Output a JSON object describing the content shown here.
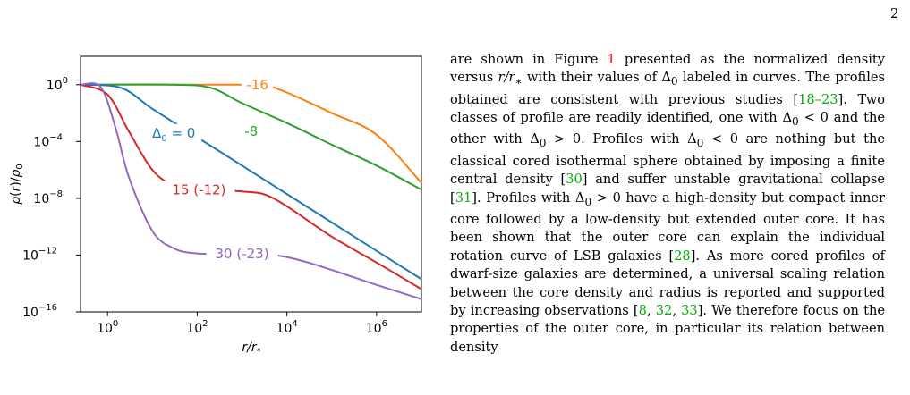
{
  "page_number": "2",
  "chart_data": {
    "type": "line",
    "title": "",
    "xlabel": "r/r*",
    "ylabel": "ρ(r)/ρ0",
    "x_scale": "log",
    "y_scale": "log",
    "xlim": [
      0.25,
      10000000
    ],
    "ylim": [
      1e-16,
      100
    ],
    "x_ticks": [
      {
        "value": 1,
        "label": "10",
        "exp": "0"
      },
      {
        "value": 100,
        "label": "10",
        "exp": "2"
      },
      {
        "value": 10000,
        "label": "10",
        "exp": "4"
      },
      {
        "value": 1000000,
        "label": "10",
        "exp": "6"
      }
    ],
    "y_ticks": [
      {
        "value": 1,
        "label": "10",
        "exp": "0"
      },
      {
        "value": 0.0001,
        "label": "10",
        "exp": "−4"
      },
      {
        "value": 1e-08,
        "label": "10",
        "exp": "−8"
      },
      {
        "value": 1e-12,
        "label": "10",
        "exp": "−12"
      },
      {
        "value": 1e-16,
        "label": "10",
        "exp": "−16"
      }
    ],
    "series": [
      {
        "name": "-16",
        "color": "#ff7f0e",
        "points": [
          [
            0.25,
            1
          ],
          [
            100,
            1
          ],
          [
            500,
            1
          ],
          [
            3000,
            0.9
          ],
          [
            10000,
            0.28
          ],
          [
            100000,
            0.01
          ],
          [
            1000000,
            0.0003
          ],
          [
            10000000,
            1.2e-07
          ]
        ],
        "label": {
          "text": "-16",
          "at": [
            2200,
            1
          ]
        }
      },
      {
        "name": "-8",
        "color": "#2ca02c",
        "points": [
          [
            0.25,
            1
          ],
          [
            30,
            1
          ],
          [
            200,
            0.6
          ],
          [
            1000,
            0.05
          ],
          [
            10000,
            0.002
          ],
          [
            100000,
            6e-05
          ],
          [
            1000000,
            2e-06
          ],
          [
            10000000,
            4e-08
          ]
        ],
        "label": {
          "text": "-8",
          "at": [
            1600,
            0.0005
          ]
        }
      },
      {
        "name": "Δ0 = 0",
        "color": "#1f77b4",
        "points": [
          [
            0.25,
            1
          ],
          [
            2,
            0.6
          ],
          [
            10,
            0.02
          ],
          [
            100,
            0.0002
          ],
          [
            1000,
            2e-06
          ],
          [
            10000,
            2e-08
          ],
          [
            100000,
            2e-10
          ],
          [
            1000000,
            2e-12
          ],
          [
            10000000,
            2e-14
          ]
        ],
        "label": {
          "text": "Δ",
          "sub": "0",
          "rest": " = 0",
          "at": [
            30,
            0.0004
          ]
        }
      },
      {
        "name": "15 (-12)",
        "color": "#d62728",
        "points": [
          [
            0.25,
            1
          ],
          [
            1,
            0.2
          ],
          [
            3,
            0.0005
          ],
          [
            10,
            1e-06
          ],
          [
            30,
            8e-08
          ],
          [
            100,
            4e-08
          ],
          [
            1000,
            3e-08
          ],
          [
            5000,
            1e-08
          ],
          [
            100000,
            2e-11
          ],
          [
            1000000,
            3e-13
          ],
          [
            10000000,
            4e-15
          ]
        ],
        "label": {
          "text": "15 (-12)",
          "at": [
            110,
            4e-08
          ]
        }
      },
      {
        "name": "30 (-23)",
        "color": "#9467bd",
        "points": [
          [
            0.25,
            1
          ],
          [
            0.7,
            0.7
          ],
          [
            1.5,
            0.001
          ],
          [
            3,
            3e-07
          ],
          [
            10,
            5e-11
          ],
          [
            30,
            3e-12
          ],
          [
            100,
            1.3e-12
          ],
          [
            1000,
            1.2e-12
          ],
          [
            5000,
            1e-12
          ],
          [
            30000,
            3e-13
          ],
          [
            1000000,
            8e-15
          ],
          [
            10000000,
            8e-16
          ]
        ],
        "label": {
          "text": "30 (-23)",
          "at": [
            1000,
            1.2e-12
          ]
        }
      }
    ]
  },
  "text": {
    "p1": "are shown in Figure ",
    "fig1": "1",
    "p2": " presented as the normalized density versus ",
    "p3": " with their values of Δ",
    "p4": " labeled in curves. The profiles obtained are consistent with previous studies [",
    "ref_18_23": "18–23",
    "p5": "]. Two classes of profile are readily identified, one with Δ",
    "p6": " < 0 and the other with Δ",
    "p7": " > 0. Profiles with Δ",
    "p8": " < 0 are nothing but the classical cored isothermal sphere obtained by imposing a finite central density [",
    "ref_30": "30",
    "p9": "] and suffer unstable gravitational collapse [",
    "ref_31": "31",
    "p10": "]. Profiles with Δ",
    "p11": " > 0 have a high-density but compact inner core followed by a low-density but extended outer core. It has been shown that the outer core can explain the individual rotation curve of LSB galaxies [",
    "ref_28": "28",
    "p12": "]. As more cored profiles of dwarf-size galaxies are determined, a universal scaling relation between the core density and radius is reported and supported by increasing observations [",
    "ref_8": "8",
    "ref_32": "32",
    "ref_33": "33",
    "p13": "]. We therefore focus on the properties of the outer core, in particular its relation between density",
    "r_over_rstar": "r/r",
    "star": "∗",
    "sub0": "0"
  }
}
